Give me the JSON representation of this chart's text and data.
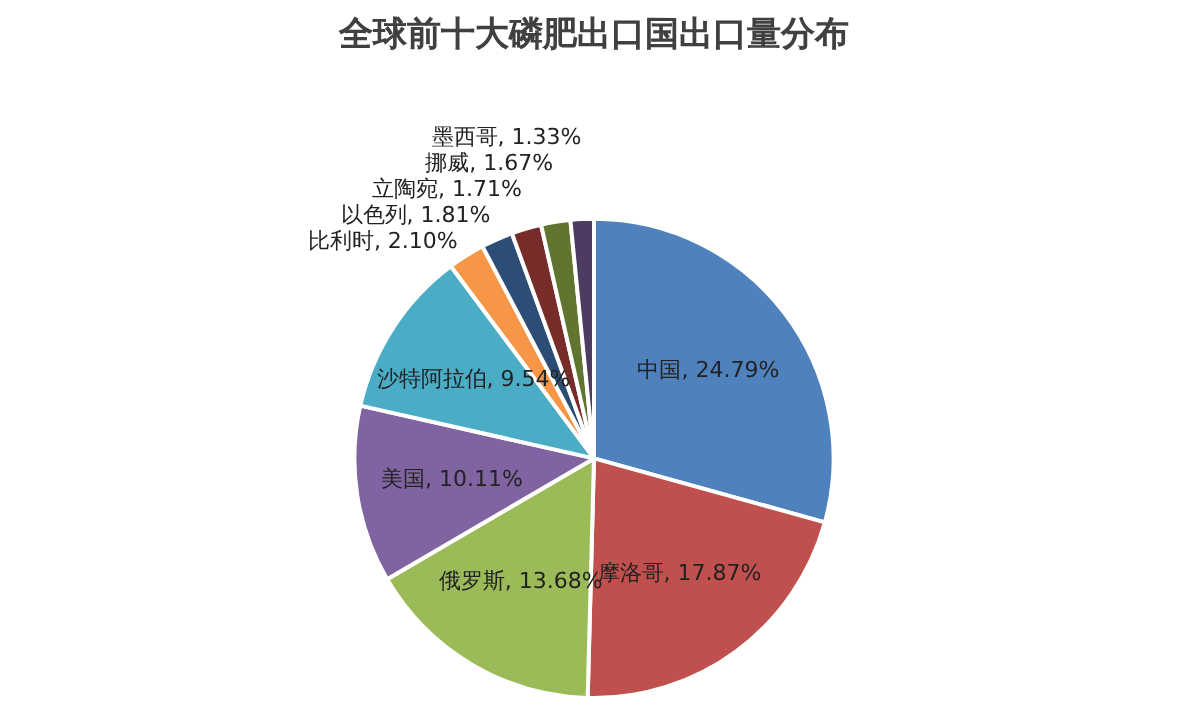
{
  "chart_data": {
    "type": "pie",
    "title": "全球前十大磷肥出口国出口量分布",
    "categories": [
      "中国",
      "摩洛哥",
      "俄罗斯",
      "美国",
      "沙特阿拉伯",
      "比利时",
      "以色列",
      "立陶宛",
      "挪威",
      "墨西哥"
    ],
    "values": [
      24.79,
      17.87,
      13.68,
      10.11,
      9.54,
      2.1,
      1.81,
      1.71,
      1.67,
      1.33
    ],
    "colors": [
      "#4f81bd",
      "#c0504d",
      "#9bbb59",
      "#8064a2",
      "#4bacc6",
      "#f79646",
      "#2c4d75",
      "#772c2a",
      "#5f7530",
      "#4d3b62"
    ],
    "value_labels": [
      ", 24.79%",
      ", 17.87%",
      ", 13.68%",
      ", 10.11%",
      ", 9.54%",
      ", 2.10%",
      ", 1.81%",
      ", 1.71%",
      ", 1.67%",
      ", 1.33%"
    ],
    "legend": false
  }
}
